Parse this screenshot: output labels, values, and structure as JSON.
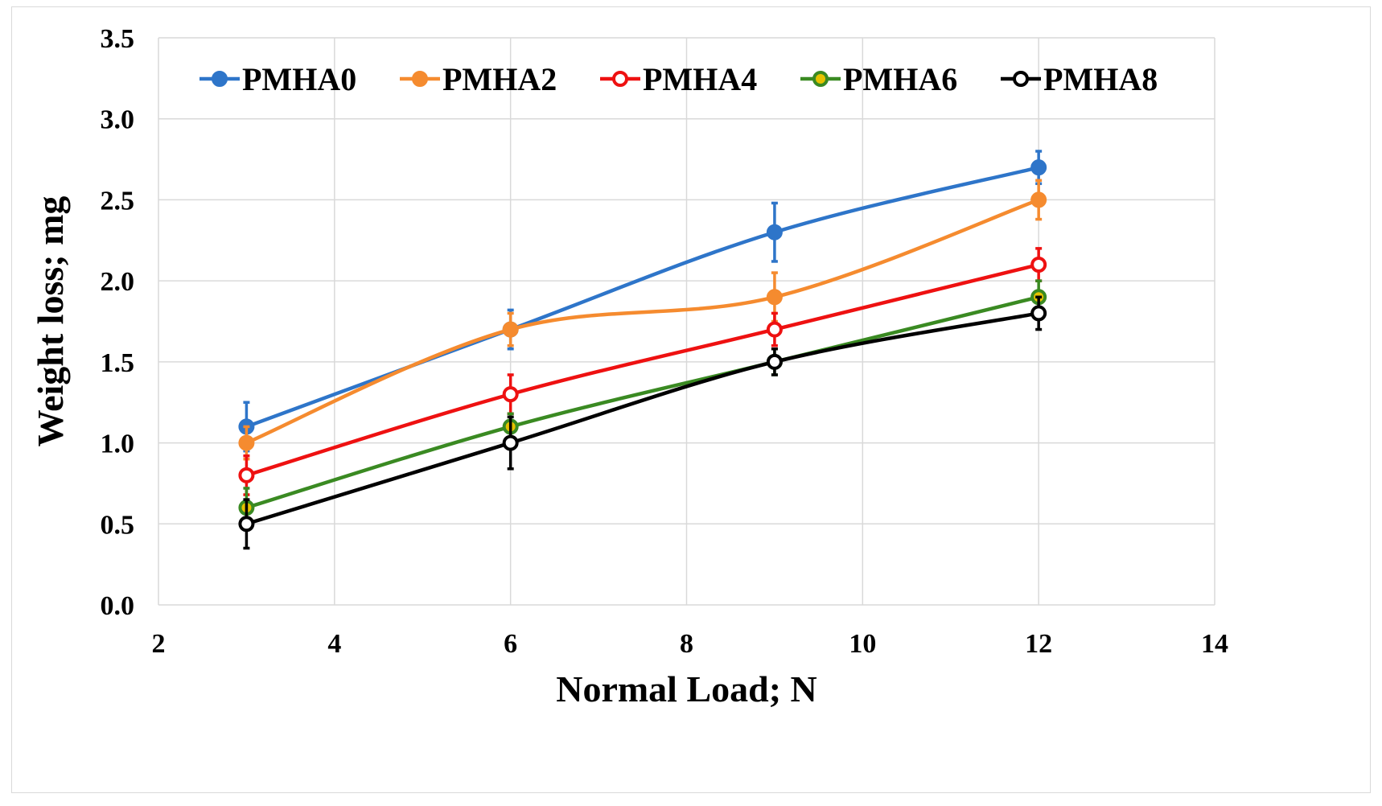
{
  "chart_data": {
    "type": "line",
    "title": "",
    "xlabel": "Normal Load; N",
    "ylabel": "Weight loss; mg",
    "xlim": [
      2,
      14
    ],
    "ylim": [
      0,
      3.5
    ],
    "xticks": [
      2,
      4,
      6,
      8,
      10,
      12,
      14
    ],
    "yticks": [
      "0.0",
      "0.5",
      "1.0",
      "1.5",
      "2.0",
      "2.5",
      "3.0",
      "3.5"
    ],
    "grid": true,
    "legend_position": "top",
    "x": [
      3,
      6,
      9,
      12
    ],
    "series": [
      {
        "name": "PMHA0",
        "color": "#2e75c9",
        "marker_fill": "#2e75c9",
        "values": [
          1.1,
          1.7,
          2.3,
          2.7
        ],
        "errors": [
          0.15,
          0.12,
          0.18,
          0.1
        ]
      },
      {
        "name": "PMHA2",
        "color": "#f58b2f",
        "marker_fill": "#f58b2f",
        "values": [
          1.0,
          1.7,
          1.9,
          2.5
        ],
        "errors": [
          0.1,
          0.1,
          0.15,
          0.12
        ]
      },
      {
        "name": "PMHA4",
        "color": "#ee1111",
        "marker_fill": "#ffffff",
        "values": [
          0.8,
          1.3,
          1.7,
          2.1
        ],
        "errors": [
          0.12,
          0.12,
          0.1,
          0.1
        ]
      },
      {
        "name": "PMHA6",
        "color": "#3a8a22",
        "marker_fill": "#e6c200",
        "values": [
          0.6,
          1.1,
          1.5,
          1.9
        ],
        "errors": [
          0.12,
          0.08,
          0.08,
          0.1
        ]
      },
      {
        "name": "PMHA8",
        "color": "#000000",
        "marker_fill": "#ffffff",
        "values": [
          0.5,
          1.0,
          1.5,
          1.8
        ],
        "errors": [
          0.15,
          0.16,
          0.08,
          0.1
        ]
      }
    ]
  }
}
